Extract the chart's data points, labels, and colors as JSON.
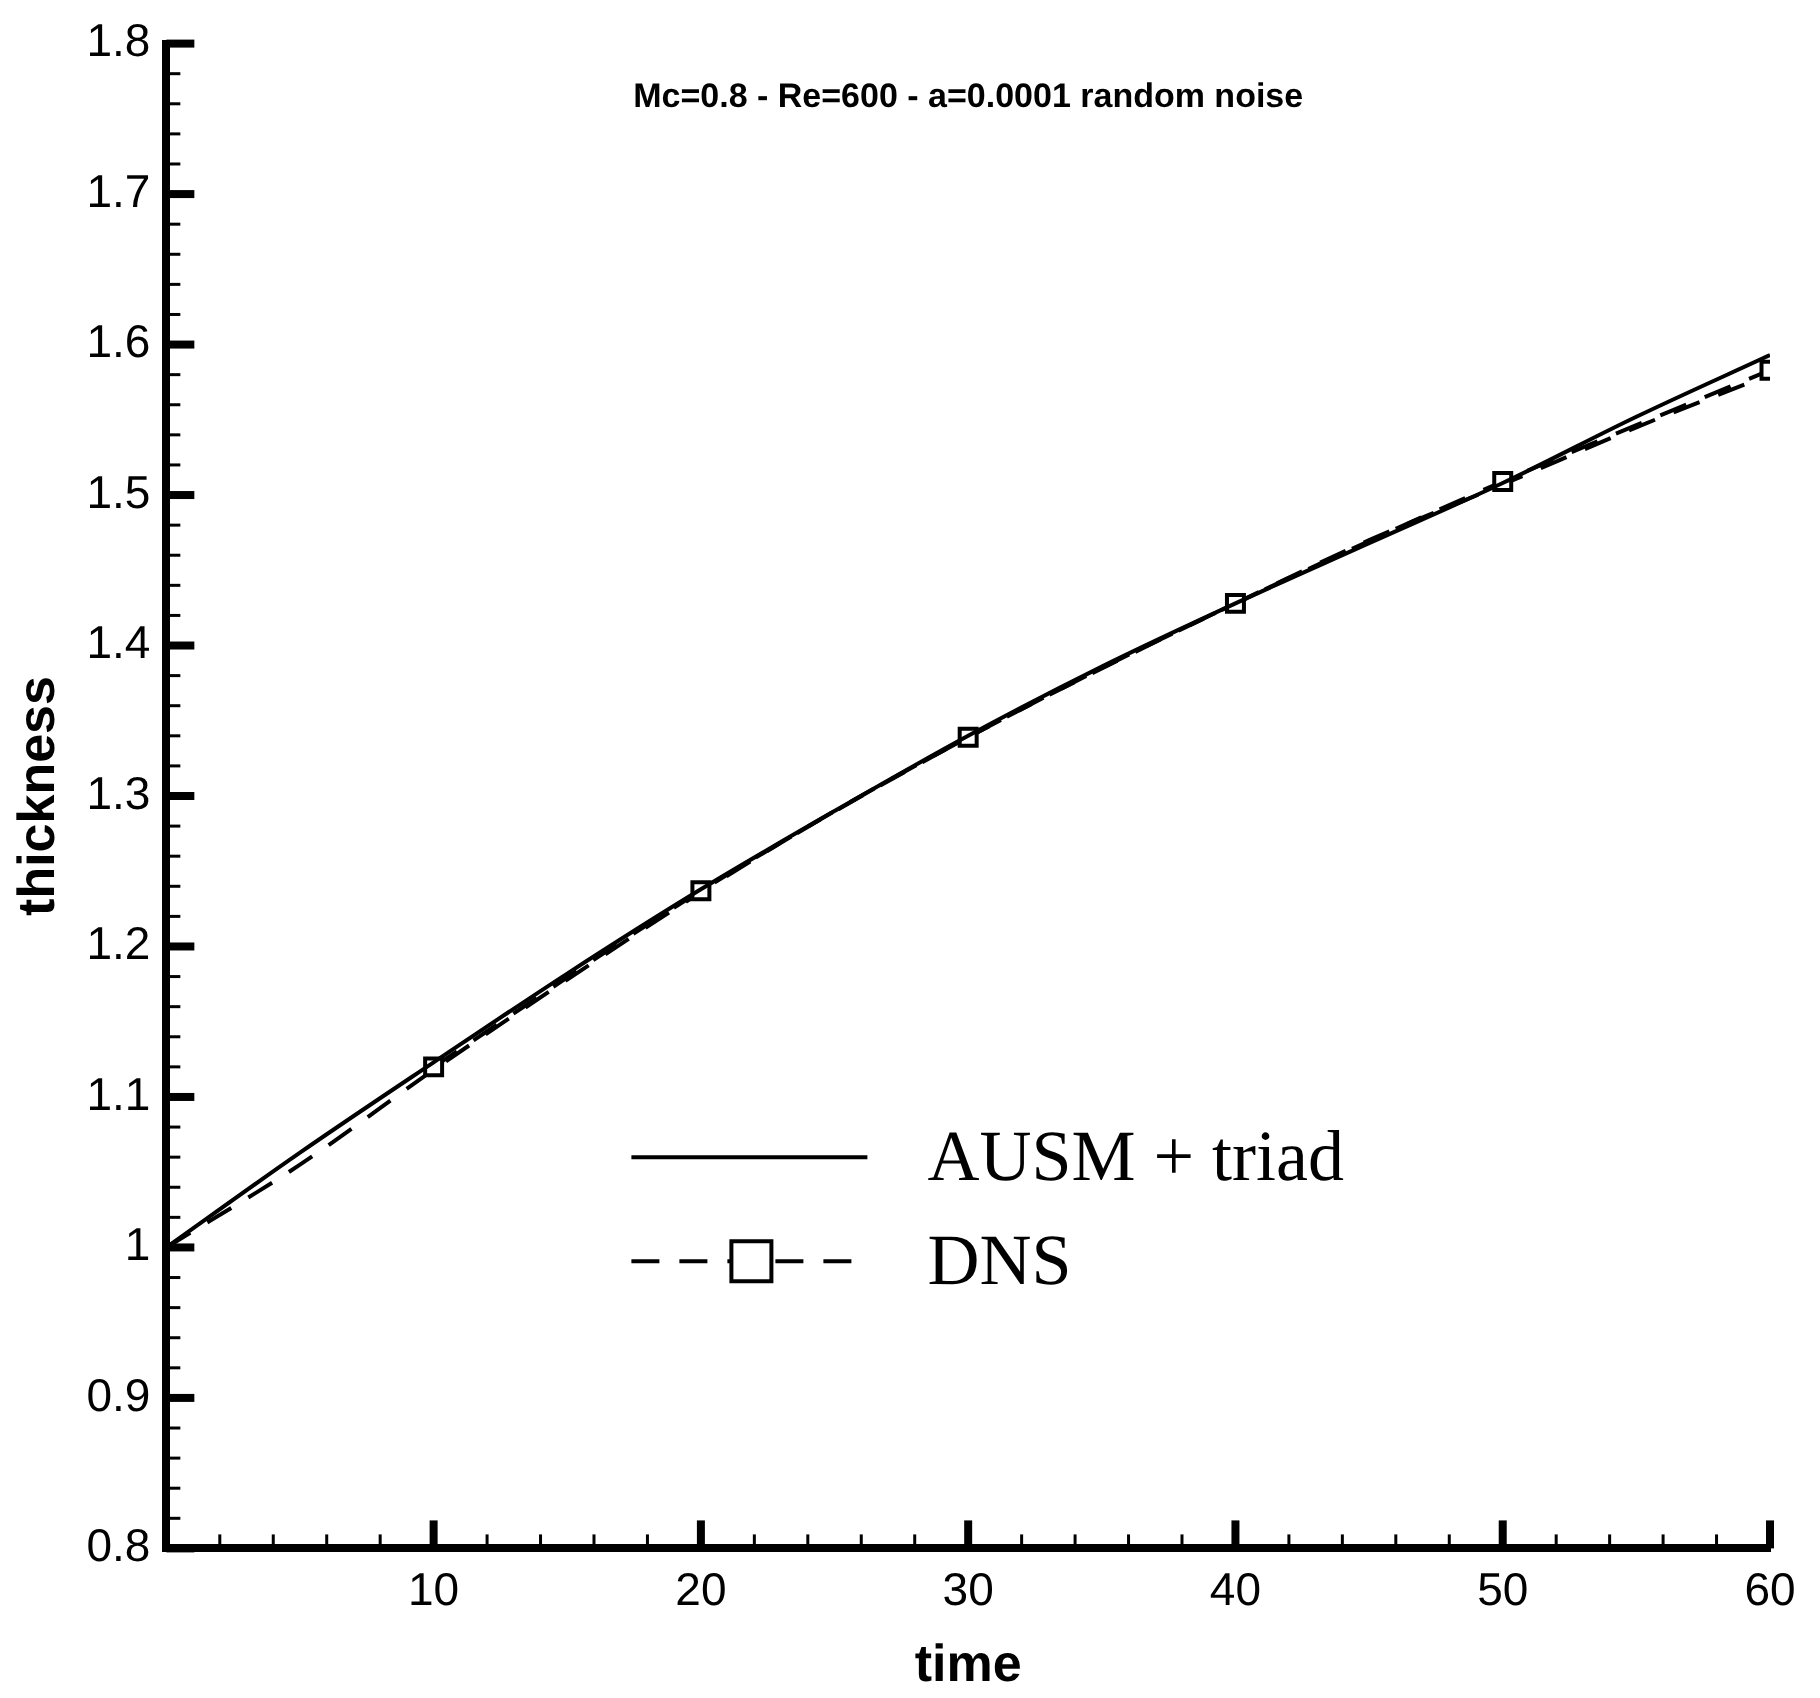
{
  "chart_data": {
    "type": "line",
    "title": "Mc=0.8 - Re=600 - a=0.0001 random noise",
    "xlabel": "time",
    "ylabel": "thickness",
    "xlim": [
      0,
      60
    ],
    "ylim": [
      0.8,
      1.8
    ],
    "xticks": [
      {
        "value": 2,
        "label": null
      },
      {
        "value": 4,
        "label": null
      },
      {
        "value": 6,
        "label": null
      },
      {
        "value": 8,
        "label": null
      },
      10,
      {
        "value": 12,
        "label": null
      },
      {
        "value": 14,
        "label": null
      },
      {
        "value": 16,
        "label": null
      },
      {
        "value": 18,
        "label": null
      },
      20,
      {
        "value": 22,
        "label": null
      },
      {
        "value": 24,
        "label": null
      },
      {
        "value": 26,
        "label": null
      },
      {
        "value": 28,
        "label": null
      },
      30,
      {
        "value": 32,
        "label": null
      },
      {
        "value": 34,
        "label": null
      },
      {
        "value": 36,
        "label": null
      },
      {
        "value": 38,
        "label": null
      },
      40,
      {
        "value": 42,
        "label": null
      },
      {
        "value": 44,
        "label": null
      },
      {
        "value": 46,
        "label": null
      },
      {
        "value": 48,
        "label": null
      },
      50,
      {
        "value": 52,
        "label": null
      },
      {
        "value": 54,
        "label": null
      },
      {
        "value": 56,
        "label": null
      },
      {
        "value": 58,
        "label": null
      },
      60
    ],
    "yticks": [
      0.8,
      {
        "value": 0.82,
        "label": null
      },
      {
        "value": 0.84,
        "label": null
      },
      {
        "value": 0.86,
        "label": null
      },
      {
        "value": 0.88,
        "label": null
      },
      0.9,
      {
        "value": 0.92,
        "label": null
      },
      {
        "value": 0.94,
        "label": null
      },
      {
        "value": 0.96,
        "label": null
      },
      {
        "value": 0.98,
        "label": null
      },
      1,
      {
        "value": 1.02,
        "label": null
      },
      {
        "value": 1.04,
        "label": null
      },
      {
        "value": 1.06,
        "label": null
      },
      {
        "value": 1.08,
        "label": null
      },
      1.1,
      {
        "value": 1.12,
        "label": null
      },
      {
        "value": 1.14,
        "label": null
      },
      {
        "value": 1.16,
        "label": null
      },
      {
        "value": 1.18,
        "label": null
      },
      1.2,
      {
        "value": 1.22,
        "label": null
      },
      {
        "value": 1.24,
        "label": null
      },
      {
        "value": 1.26,
        "label": null
      },
      {
        "value": 1.28,
        "label": null
      },
      1.3,
      {
        "value": 1.32,
        "label": null
      },
      {
        "value": 1.34,
        "label": null
      },
      {
        "value": 1.36,
        "label": null
      },
      {
        "value": 1.38,
        "label": null
      },
      1.4,
      {
        "value": 1.42,
        "label": null
      },
      {
        "value": 1.44,
        "label": null
      },
      {
        "value": 1.46,
        "label": null
      },
      {
        "value": 1.48,
        "label": null
      },
      1.5,
      {
        "value": 1.52,
        "label": null
      },
      {
        "value": 1.54,
        "label": null
      },
      {
        "value": 1.56,
        "label": null
      },
      {
        "value": 1.58,
        "label": null
      },
      1.6,
      {
        "value": 1.62,
        "label": null
      },
      {
        "value": 1.64,
        "label": null
      },
      {
        "value": 1.66,
        "label": null
      },
      {
        "value": 1.68,
        "label": null
      },
      1.7,
      {
        "value": 1.72,
        "label": null
      },
      {
        "value": 1.74,
        "label": null
      },
      {
        "value": 1.76,
        "label": null
      },
      {
        "value": 1.78,
        "label": null
      },
      1.8
    ],
    "grid": false,
    "legend": "bottom right",
    "series": [
      {
        "name": "AUSM + triad",
        "color": "#000000",
        "line_style": "solid",
        "marker": "none",
        "x": [
          0,
          5,
          10,
          15,
          20,
          25,
          30,
          35,
          40,
          45,
          50,
          55,
          60
        ],
        "values": [
          1.0,
          1.063,
          1.123,
          1.182,
          1.238,
          1.29,
          1.34,
          1.386,
          1.428,
          1.468,
          1.508,
          1.552,
          1.593
        ]
      },
      {
        "name": "DNS",
        "color": "#000000",
        "line_style": "dashed",
        "marker": "square",
        "x": [
          10,
          20,
          30,
          40,
          50,
          60
        ],
        "values": [
          1.12,
          1.237,
          1.339,
          1.428,
          1.509,
          1.583
        ]
      },
      {
        "color": "#000000",
        "line_style": "dashed",
        "marker": "none",
        "x": [
          0,
          5,
          10,
          15,
          20,
          25,
          30,
          35,
          40,
          45,
          50,
          55,
          60
        ],
        "values": [
          1.0,
          1.055,
          1.118,
          1.178,
          1.236,
          1.29,
          1.339,
          1.385,
          1.428,
          1.47,
          1.507,
          1.545,
          1.58
        ]
      }
    ]
  }
}
